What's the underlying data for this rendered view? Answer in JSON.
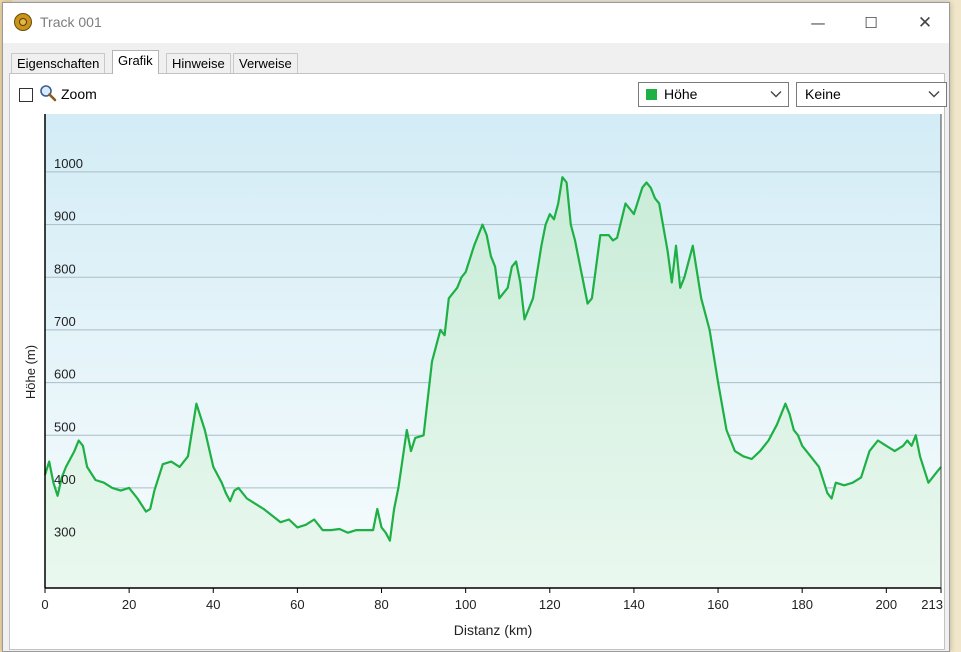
{
  "window": {
    "title": "Track 001",
    "minimize_glyph": "—",
    "maximize_glyph": "☐",
    "close_glyph": "✕"
  },
  "tabs": [
    {
      "label": "Eigenschaften",
      "active": false
    },
    {
      "label": "Grafik",
      "active": true
    },
    {
      "label": "Hinweise",
      "active": false
    },
    {
      "label": "Verweise",
      "active": false
    }
  ],
  "toolbar": {
    "zoom_label": "Zoom",
    "zoom_checked": false,
    "primary_select": {
      "value": "Höhe",
      "swatch_color": "#1db044"
    },
    "secondary_select": {
      "value": "Keine"
    }
  },
  "chart_data": {
    "type": "area",
    "xlabel": "Distanz  (km)",
    "ylabel": "Höhe (m)",
    "xlim": [
      0,
      213
    ],
    "ylim": [
      210,
      1110
    ],
    "x_ticks": [
      0,
      20,
      40,
      60,
      80,
      100,
      120,
      140,
      160,
      180,
      200,
      213
    ],
    "y_ticks": [
      300,
      400,
      500,
      600,
      700,
      800,
      900,
      1000
    ],
    "grid": true,
    "line_color": "#1db044",
    "series": [
      {
        "x": [
          0,
          1,
          2,
          3,
          4,
          5,
          6,
          7,
          8,
          9,
          10,
          12,
          14,
          16,
          18,
          20,
          22,
          24,
          25,
          26,
          28,
          30,
          32,
          34,
          36,
          38,
          40,
          42,
          43,
          44,
          45,
          46,
          48,
          52,
          56,
          58,
          60,
          62,
          64,
          66,
          68,
          70,
          72,
          74,
          76,
          78,
          79,
          80,
          81,
          82,
          83,
          84,
          85,
          86,
          87,
          88,
          90,
          92,
          93,
          94,
          95,
          96,
          98,
          99,
          100,
          102,
          104,
          105,
          106,
          107,
          108,
          110,
          111,
          112,
          113,
          114,
          116,
          118,
          119,
          120,
          121,
          122,
          123,
          124,
          125,
          126,
          127,
          128,
          129,
          130,
          132,
          134,
          135,
          136,
          138,
          140,
          142,
          143,
          144,
          145,
          146,
          148,
          149,
          150,
          151,
          152,
          154,
          156,
          158,
          160,
          162,
          164,
          166,
          168,
          170,
          172,
          174,
          176,
          177,
          178,
          179,
          180,
          182,
          184,
          186,
          187,
          188,
          190,
          192,
          194,
          196,
          198,
          200,
          202,
          204,
          205,
          206,
          207,
          208,
          210,
          212,
          213
        ],
        "values": [
          425,
          450,
          410,
          385,
          420,
          440,
          455,
          470,
          490,
          480,
          440,
          415,
          410,
          400,
          395,
          400,
          380,
          355,
          360,
          395,
          445,
          450,
          440,
          460,
          560,
          510,
          440,
          410,
          390,
          375,
          395,
          400,
          380,
          360,
          335,
          340,
          325,
          330,
          340,
          320,
          320,
          322,
          315,
          320,
          320,
          320,
          360,
          325,
          315,
          300,
          360,
          400,
          455,
          510,
          470,
          495,
          500,
          640,
          670,
          700,
          690,
          760,
          780,
          800,
          810,
          860,
          900,
          880,
          840,
          820,
          760,
          780,
          820,
          830,
          790,
          720,
          760,
          860,
          900,
          920,
          910,
          940,
          990,
          980,
          900,
          870,
          830,
          790,
          750,
          760,
          880,
          880,
          870,
          875,
          940,
          920,
          970,
          980,
          970,
          950,
          940,
          850,
          790,
          860,
          780,
          800,
          860,
          760,
          700,
          600,
          510,
          470,
          460,
          455,
          470,
          490,
          520,
          560,
          540,
          510,
          500,
          480,
          460,
          440,
          390,
          380,
          410,
          405,
          410,
          420,
          470,
          490,
          480,
          470,
          480,
          490,
          480,
          500,
          460,
          410,
          430,
          440
        ]
      }
    ]
  }
}
